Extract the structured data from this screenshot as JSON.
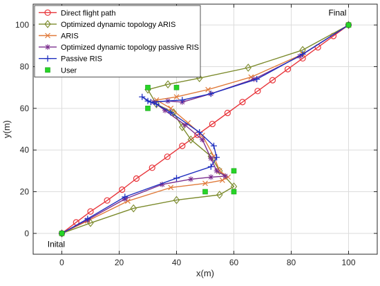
{
  "chart_data": {
    "type": "line",
    "title": "",
    "xlabel": "x(m)",
    "ylabel": "y(m)",
    "xlim": [
      -10,
      110
    ],
    "ylim": [
      -10,
      110
    ],
    "xticks": [
      0,
      20,
      40,
      60,
      80,
      100
    ],
    "yticks": [
      0,
      20,
      40,
      60,
      80,
      100
    ],
    "grid": true,
    "legend_position": "top-left",
    "annotations": [
      {
        "text": "Final",
        "x": 93,
        "y": 104.5
      },
      {
        "text": "Inital",
        "x": -5,
        "y": -6.5
      }
    ],
    "series": [
      {
        "name": "Direct flight path",
        "color": "#e8343a",
        "marker": "circle",
        "points": [
          [
            0,
            0
          ],
          [
            5,
            5.3
          ],
          [
            10,
            10.5
          ],
          [
            15.8,
            15.8
          ],
          [
            21,
            21
          ],
          [
            26,
            26.3
          ],
          [
            31.5,
            31.5
          ],
          [
            36.8,
            36.8
          ],
          [
            42,
            42
          ],
          [
            47.3,
            47.3
          ],
          [
            52.5,
            52.5
          ],
          [
            57.8,
            57.8
          ],
          [
            63,
            63
          ],
          [
            68.3,
            68.3
          ],
          [
            73.5,
            73.5
          ],
          [
            78.8,
            78.8
          ],
          [
            84,
            84
          ],
          [
            89.3,
            89.3
          ],
          [
            94.7,
            94.7
          ],
          [
            100,
            100
          ]
        ]
      },
      {
        "name": "Optimized dynamic topology ARIS",
        "color": "#7b8a2b",
        "marker": "diamond",
        "points": [
          [
            0,
            0
          ],
          [
            10,
            5
          ],
          [
            25,
            12
          ],
          [
            40,
            16
          ],
          [
            55,
            18.5
          ],
          [
            60,
            22.5
          ],
          [
            55,
            30
          ],
          [
            52,
            37
          ],
          [
            45,
            45
          ],
          [
            42,
            51
          ],
          [
            39,
            58
          ],
          [
            33,
            62
          ],
          [
            30,
            69
          ],
          [
            37,
            71.5
          ],
          [
            48,
            74.5
          ],
          [
            65,
            79.5
          ],
          [
            84,
            88
          ],
          [
            100,
            100
          ]
        ]
      },
      {
        "name": "ARIS",
        "color": "#e07a3a",
        "marker": "x",
        "points": [
          [
            0,
            0
          ],
          [
            9,
            6
          ],
          [
            23,
            15.5
          ],
          [
            38,
            22
          ],
          [
            50,
            24
          ],
          [
            56,
            25.5
          ],
          [
            58,
            27
          ],
          [
            55,
            30
          ],
          [
            53,
            37
          ],
          [
            49,
            47
          ],
          [
            44,
            53
          ],
          [
            38,
            60
          ],
          [
            33,
            64
          ],
          [
            40,
            65.5
          ],
          [
            51,
            69
          ],
          [
            66,
            75
          ],
          [
            84,
            86
          ],
          [
            100,
            100
          ]
        ]
      },
      {
        "name": "Optimized dynamic topology passive RIS",
        "color": "#7b2e8e",
        "marker": "star",
        "points": [
          [
            0,
            0
          ],
          [
            9,
            6.5
          ],
          [
            22,
            16.5
          ],
          [
            35,
            23.5
          ],
          [
            45,
            26
          ],
          [
            52,
            27
          ],
          [
            57,
            27.5
          ],
          [
            54,
            30
          ],
          [
            52,
            36
          ],
          [
            49,
            45
          ],
          [
            43,
            52
          ],
          [
            36,
            59
          ],
          [
            32,
            63
          ],
          [
            37,
            63.5
          ],
          [
            42,
            63
          ],
          [
            52,
            67
          ],
          [
            67,
            74
          ],
          [
            83,
            85
          ],
          [
            100,
            100
          ]
        ]
      },
      {
        "name": "Passive RIS",
        "color": "#1f2fbf",
        "marker": "plus",
        "points": [
          [
            0,
            0
          ],
          [
            9,
            7
          ],
          [
            22,
            17.5
          ],
          [
            40,
            26.5
          ],
          [
            52,
            32
          ],
          [
            54,
            36.5
          ],
          [
            53,
            42
          ],
          [
            48,
            48.5
          ],
          [
            38,
            58
          ],
          [
            33,
            62
          ],
          [
            30,
            63.5
          ],
          [
            28,
            65.5
          ],
          [
            31,
            63
          ],
          [
            42,
            64
          ],
          [
            52,
            67
          ],
          [
            68,
            74
          ],
          [
            84,
            86
          ],
          [
            100,
            100
          ]
        ]
      },
      {
        "name": "User",
        "color": "#27d427",
        "marker": "square",
        "scatter": true,
        "points": [
          [
            0,
            0
          ],
          [
            30,
            70
          ],
          [
            40,
            70
          ],
          [
            30,
            60
          ],
          [
            60,
            30
          ],
          [
            50,
            20
          ],
          [
            60,
            20
          ],
          [
            100,
            100
          ]
        ]
      }
    ]
  }
}
